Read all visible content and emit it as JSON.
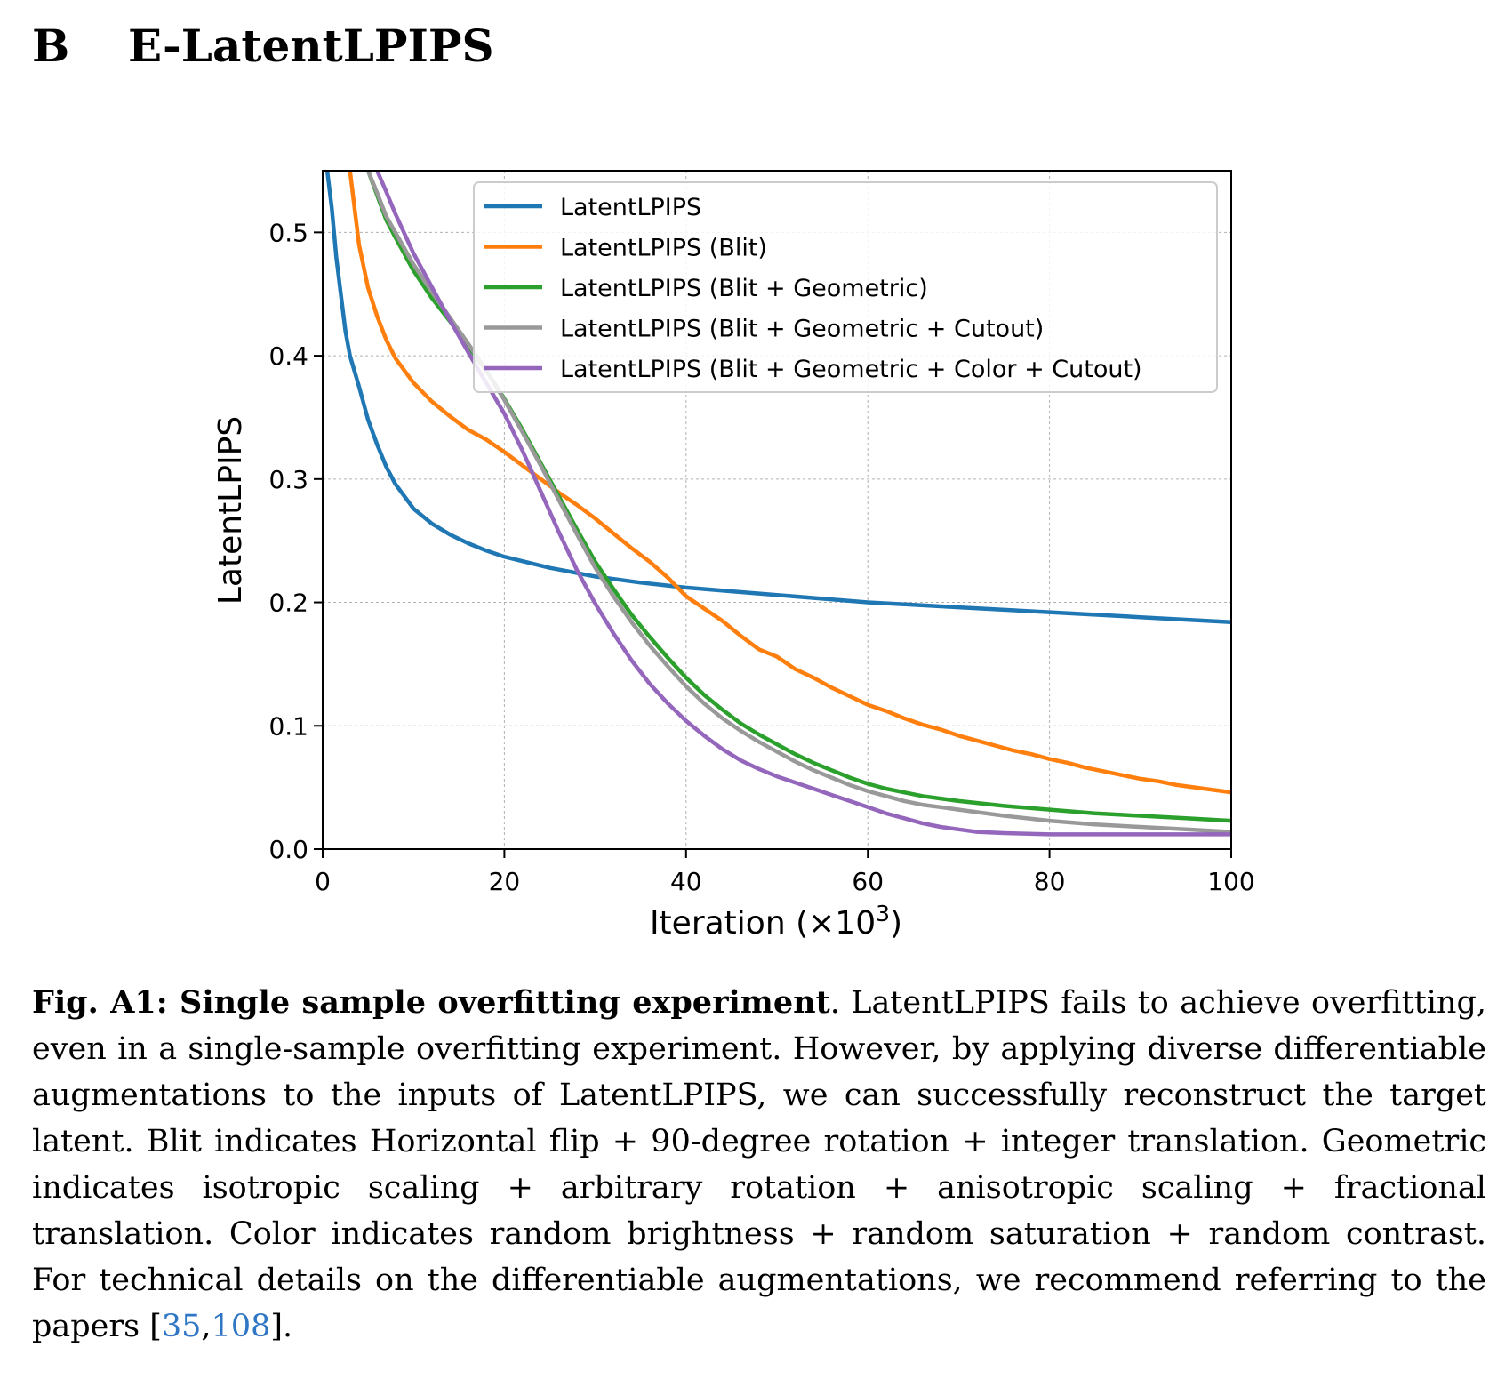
{
  "section": {
    "number": "B",
    "title": "E-LatentLPIPS"
  },
  "chart_data": {
    "type": "line",
    "title": "",
    "xlabel": "Iteration (×10",
    "xlabel_sup": "3",
    "xlabel_end": ")",
    "ylabel": "LatentLPIPS",
    "xlim": [
      0,
      100
    ],
    "ylim": [
      0,
      0.55
    ],
    "xticks": [
      0,
      20,
      40,
      60,
      80,
      100
    ],
    "xtick_labels": [
      "0",
      "20",
      "40",
      "60",
      "80",
      "100"
    ],
    "yticks": [
      0.0,
      0.1,
      0.2,
      0.3,
      0.4,
      0.5
    ],
    "ytick_labels": [
      "0.0",
      "0.1",
      "0.2",
      "0.3",
      "0.4",
      "0.5"
    ],
    "grid": true,
    "legend_position": "top-right",
    "series": [
      {
        "name": "LatentLPIPS",
        "color": "#1f77b4",
        "x": [
          0.5,
          1,
          1.5,
          2,
          2.5,
          3,
          4,
          5,
          6,
          7,
          8,
          10,
          12,
          14,
          16,
          18,
          20,
          25,
          30,
          35,
          40,
          45,
          50,
          55,
          60,
          70,
          80,
          90,
          100
        ],
        "y": [
          0.55,
          0.52,
          0.48,
          0.45,
          0.42,
          0.4,
          0.375,
          0.348,
          0.328,
          0.31,
          0.296,
          0.276,
          0.264,
          0.255,
          0.248,
          0.242,
          0.237,
          0.228,
          0.221,
          0.216,
          0.212,
          0.209,
          0.206,
          0.203,
          0.2,
          0.196,
          0.192,
          0.188,
          0.184
        ]
      },
      {
        "name": "LatentLPIPS (Blit)",
        "color": "#ff7f0e",
        "x": [
          3,
          4,
          5,
          6,
          7,
          8,
          10,
          12,
          14,
          16,
          18,
          20,
          22,
          24,
          26,
          28,
          30,
          32,
          34,
          36,
          38,
          40,
          42,
          44,
          46,
          48,
          50,
          52,
          54,
          56,
          58,
          60,
          62,
          64,
          66,
          68,
          70,
          72,
          74,
          76,
          78,
          80,
          82,
          84,
          86,
          88,
          90,
          92,
          94,
          96,
          98,
          100
        ],
        "y": [
          0.55,
          0.49,
          0.455,
          0.432,
          0.413,
          0.398,
          0.378,
          0.363,
          0.351,
          0.34,
          0.332,
          0.322,
          0.311,
          0.3,
          0.289,
          0.279,
          0.268,
          0.256,
          0.244,
          0.233,
          0.22,
          0.205,
          0.195,
          0.185,
          0.173,
          0.162,
          0.156,
          0.146,
          0.139,
          0.131,
          0.124,
          0.117,
          0.112,
          0.106,
          0.101,
          0.097,
          0.092,
          0.088,
          0.084,
          0.08,
          0.077,
          0.073,
          0.07,
          0.066,
          0.063,
          0.06,
          0.057,
          0.055,
          0.052,
          0.05,
          0.048,
          0.046
        ]
      },
      {
        "name": "LatentLPIPS (Blit + Geometric)",
        "color": "#2ca02c",
        "x": [
          5,
          6,
          7,
          8,
          10,
          12,
          14,
          16,
          18,
          20,
          22,
          24,
          26,
          28,
          30,
          32,
          34,
          36,
          38,
          40,
          42,
          44,
          46,
          48,
          50,
          52,
          54,
          56,
          58,
          60,
          62,
          64,
          66,
          68,
          70,
          75,
          80,
          85,
          90,
          95,
          100
        ],
        "y": [
          0.55,
          0.53,
          0.51,
          0.496,
          0.469,
          0.447,
          0.428,
          0.408,
          0.388,
          0.365,
          0.34,
          0.313,
          0.286,
          0.259,
          0.233,
          0.211,
          0.19,
          0.172,
          0.155,
          0.139,
          0.125,
          0.113,
          0.102,
          0.093,
          0.085,
          0.077,
          0.07,
          0.064,
          0.058,
          0.053,
          0.049,
          0.046,
          0.043,
          0.041,
          0.039,
          0.035,
          0.032,
          0.029,
          0.027,
          0.025,
          0.023
        ]
      },
      {
        "name": "LatentLPIPS (Blit + Geometric + Cutout)",
        "color": "#999999",
        "x": [
          5,
          6,
          7,
          8,
          10,
          12,
          14,
          16,
          18,
          20,
          22,
          24,
          26,
          28,
          30,
          32,
          34,
          36,
          38,
          40,
          42,
          44,
          46,
          48,
          50,
          52,
          54,
          56,
          58,
          60,
          62,
          64,
          66,
          68,
          70,
          75,
          80,
          85,
          90,
          95,
          100
        ],
        "y": [
          0.55,
          0.532,
          0.513,
          0.5,
          0.474,
          0.452,
          0.431,
          0.41,
          0.388,
          0.364,
          0.338,
          0.311,
          0.283,
          0.255,
          0.228,
          0.205,
          0.184,
          0.165,
          0.148,
          0.132,
          0.118,
          0.106,
          0.096,
          0.087,
          0.079,
          0.071,
          0.064,
          0.058,
          0.052,
          0.047,
          0.043,
          0.039,
          0.036,
          0.034,
          0.032,
          0.027,
          0.023,
          0.02,
          0.018,
          0.016,
          0.014
        ]
      },
      {
        "name": "LatentLPIPS (Blit + Geometric + Color + Cutout)",
        "color": "#9467bd",
        "x": [
          6,
          7,
          8,
          10,
          12,
          14,
          16,
          18,
          20,
          22,
          24,
          26,
          28,
          30,
          32,
          34,
          36,
          38,
          40,
          42,
          44,
          46,
          48,
          50,
          52,
          54,
          56,
          58,
          60,
          62,
          64,
          66,
          68,
          70,
          72,
          75,
          80,
          85,
          90,
          95,
          100
        ],
        "y": [
          0.55,
          0.533,
          0.515,
          0.483,
          0.456,
          0.429,
          0.403,
          0.378,
          0.353,
          0.323,
          0.29,
          0.257,
          0.226,
          0.199,
          0.175,
          0.153,
          0.134,
          0.118,
          0.104,
          0.092,
          0.081,
          0.072,
          0.065,
          0.059,
          0.054,
          0.049,
          0.044,
          0.039,
          0.034,
          0.029,
          0.025,
          0.021,
          0.018,
          0.016,
          0.014,
          0.013,
          0.012,
          0.012,
          0.012,
          0.012,
          0.012
        ]
      }
    ]
  },
  "caption": {
    "label": "Fig. A1: Single sample overfitting experiment",
    "text_before": ". LatentLPIPS fails to achieve overfitting, even in a single-sample overfitting experiment. However, by applying diverse differentiable augmentations to the inputs of LatentLPIPS, we can successfully reconstruct the target latent. Blit indicates Horizontal flip + 90-degree rotation + integer translation. Geometric indicates isotropic scaling + arbitrary rotation + anisotropic scaling + fractional translation. Color indicates random brightness + random saturation + random contrast. For technical details on the differentiable augmentations, we recommend referring to the papers [",
    "cite_1": "35",
    "cite_sep": ",",
    "cite_2": "108",
    "text_after": "]."
  }
}
